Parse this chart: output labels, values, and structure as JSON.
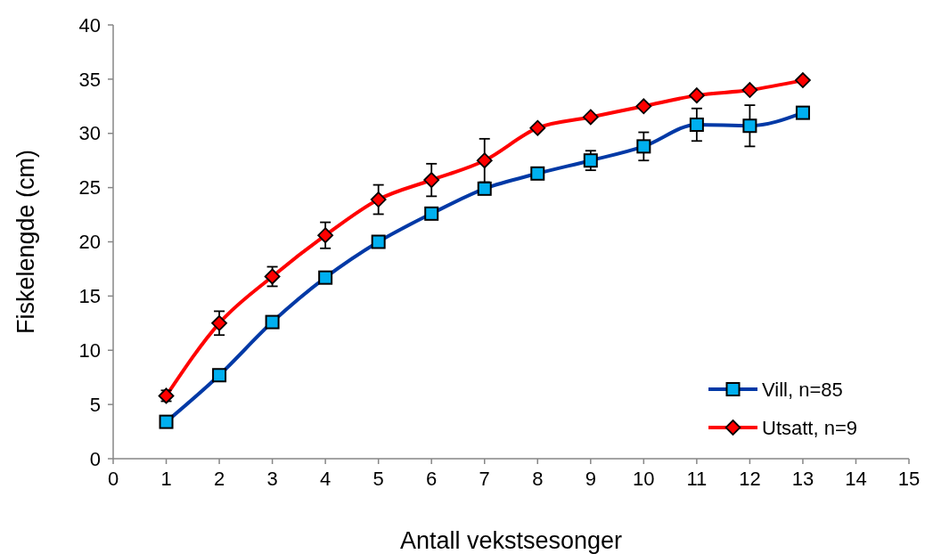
{
  "chart_data": {
    "type": "line",
    "xlabel": "Antall vekstsesonger",
    "ylabel": "Fiskelengde (cm)",
    "x": [
      1,
      2,
      3,
      4,
      5,
      6,
      7,
      8,
      9,
      10,
      11,
      12,
      13
    ],
    "xlim": [
      0,
      15
    ],
    "xticks": [
      0,
      1,
      2,
      3,
      4,
      5,
      6,
      7,
      8,
      9,
      10,
      11,
      12,
      13,
      14,
      15
    ],
    "ylim": [
      0,
      40
    ],
    "yticks": [
      0,
      5,
      10,
      15,
      20,
      25,
      30,
      35,
      40
    ],
    "grid": false,
    "legend": "bottom right",
    "line_style": "solid",
    "series": [
      {
        "name": "Vill, n=85",
        "color": "#0039a6",
        "marker": "square",
        "colors": [
          "#00b0f0",
          "#00b0f0",
          "#00b0f0",
          "#00b0f0",
          "#00b0f0",
          "#00b0f0",
          "#00b0f0",
          "#00b0f0",
          "#00b0f0",
          "#00b0f0",
          "#00b0f0",
          "#00b0f0",
          "#00b0f0"
        ],
        "values": [
          3.4,
          7.7,
          12.6,
          16.7,
          20.0,
          22.6,
          24.9,
          26.3,
          27.5,
          28.8,
          30.8,
          30.7,
          31.9
        ],
        "errors": [
          null,
          null,
          null,
          null,
          null,
          null,
          null,
          null,
          0.9,
          1.3,
          1.5,
          1.9,
          null
        ]
      },
      {
        "name": "Utsatt, n=9",
        "color": "#ff0000",
        "marker": "diamond",
        "colors": [
          "#ff0000",
          "#ff0000",
          "#ff0000",
          "#ff0000",
          "#ff0000",
          "#ff0000",
          "#ff0000",
          "#ff0000",
          "#ff0000",
          "#ff0000",
          "#ff0000",
          "#ff0000",
          "#ff0000"
        ],
        "values": [
          5.8,
          12.5,
          16.8,
          20.6,
          23.9,
          25.7,
          27.5,
          30.5,
          31.5,
          32.5,
          33.5,
          34.0,
          34.9
        ],
        "errors": [
          0.5,
          1.1,
          0.9,
          1.2,
          1.35,
          1.5,
          2.0,
          null,
          null,
          null,
          null,
          null,
          null
        ]
      }
    ]
  }
}
